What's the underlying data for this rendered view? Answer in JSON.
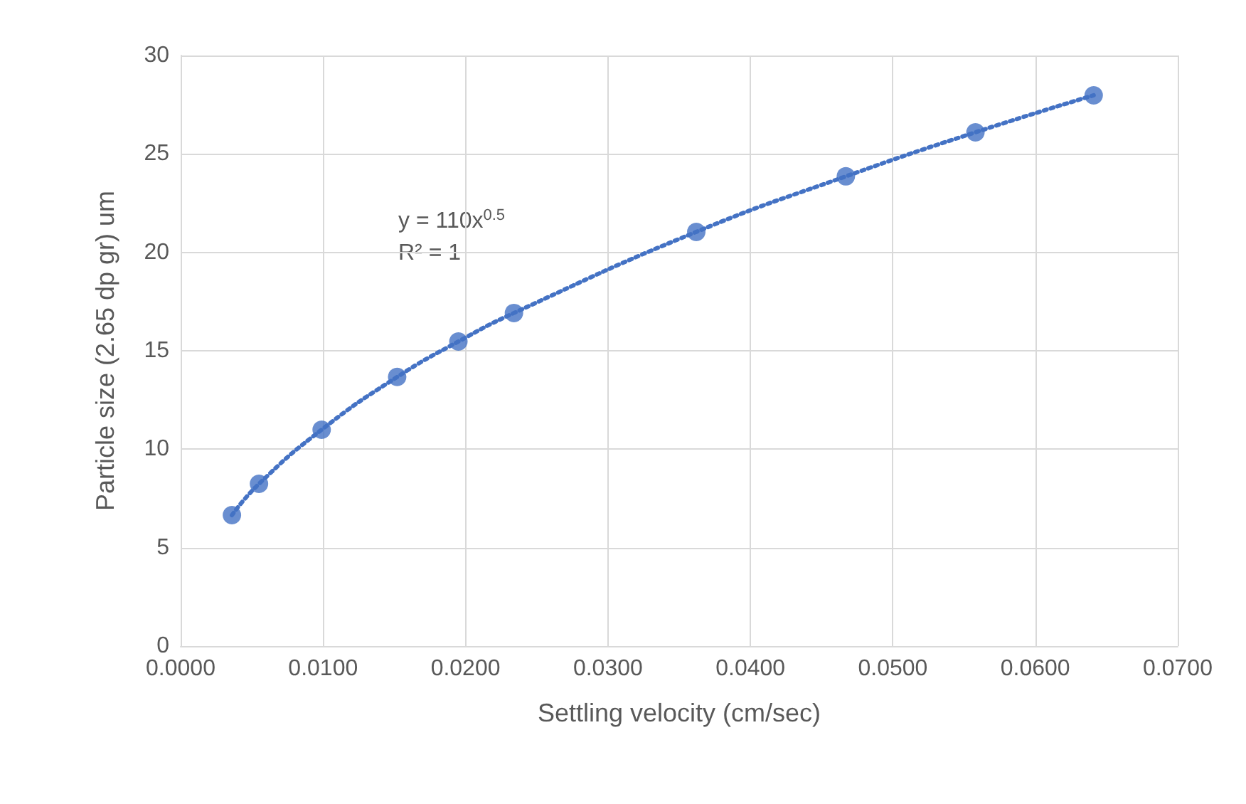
{
  "chart_data": {
    "type": "scatter",
    "xlabel": "Settling velocity (cm/sec)",
    "ylabel": "Particle size (2.65 dp gr) um",
    "series": [
      {
        "color": "#4472c4",
        "marker": "circle",
        "x": [
          0.0036,
          0.0055,
          0.0099,
          0.0152,
          0.0195,
          0.0234,
          0.0362,
          0.0467,
          0.0558,
          0.0641
        ],
        "values": [
          6.65,
          8.24,
          10.99,
          13.67,
          15.47,
          16.92,
          21.04,
          23.86,
          26.1,
          27.98
        ]
      },
      {
        "type": "line",
        "color": "#4472c4",
        "line_style": "dotted",
        "marker": "none",
        "x": [
          0.0036,
          0.0055,
          0.0099,
          0.0152,
          0.0195,
          0.0234,
          0.0362,
          0.0467,
          0.0558,
          0.0641
        ],
        "values": [
          6.65,
          8.24,
          10.99,
          13.67,
          15.47,
          16.92,
          21.04,
          23.86,
          26.1,
          27.98
        ]
      }
    ],
    "annotations": [
      "y = 110x$^{0.5}$",
      "R² = 1"
    ],
    "xlim": [
      0,
      0.07
    ],
    "xticks": [
      {
        "value": 0,
        "label": "0.0000"
      },
      {
        "value": 0.01,
        "label": "0.0100"
      },
      {
        "value": 0.02,
        "label": "0.0200"
      },
      {
        "value": 0.03,
        "label": "0.0300"
      },
      {
        "value": 0.04,
        "label": "0.0400"
      },
      {
        "value": 0.05,
        "label": "0.0500"
      },
      {
        "value": 0.06,
        "label": "0.0600"
      },
      {
        "value": 0.07,
        "label": "0.0700"
      }
    ],
    "ylim": [
      0,
      30
    ],
    "yticks": [
      0,
      5,
      10,
      15,
      20,
      25,
      30
    ],
    "grid": true
  }
}
